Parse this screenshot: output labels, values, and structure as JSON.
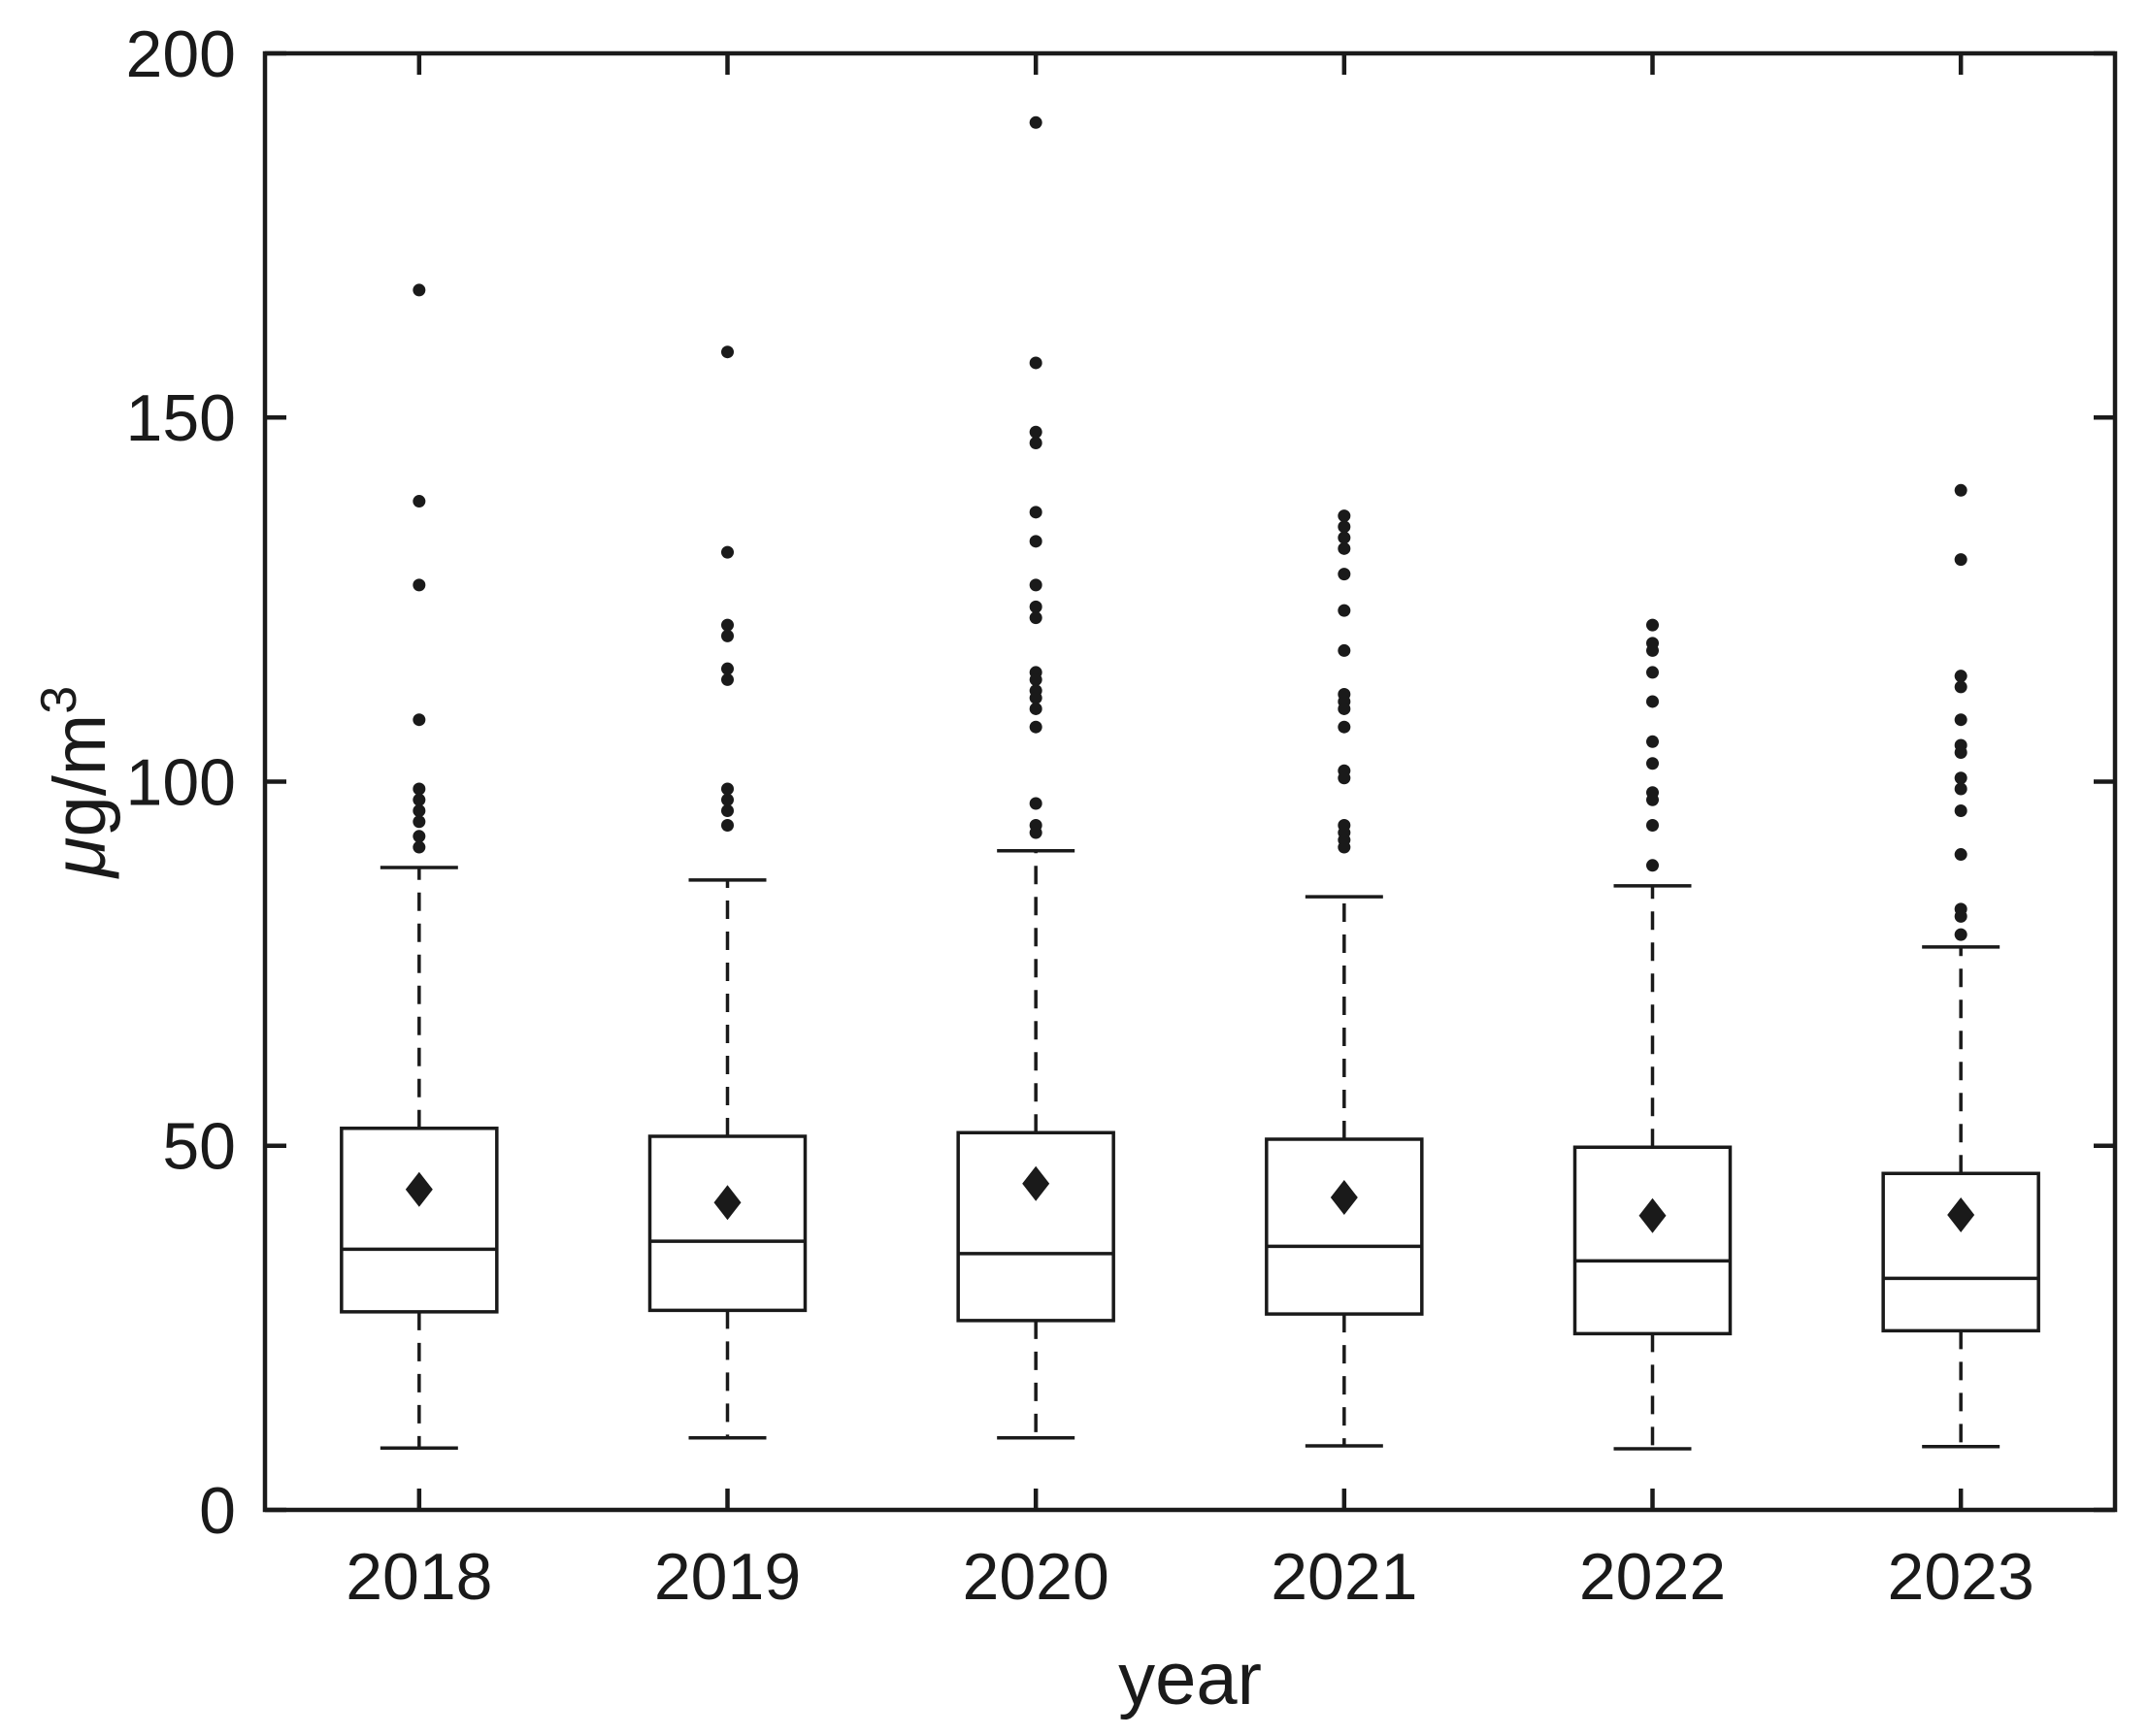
{
  "figure": {
    "background": "#ffffff",
    "line_color": "#1a1a1a"
  },
  "chart_data": {
    "type": "boxplot",
    "title": "",
    "xlabel": "year",
    "ylabel": "μg/m³",
    "ylabel_parts": {
      "mu": "μ",
      "rest": "g/m",
      "exponent": "3"
    },
    "ylim": [
      0,
      200
    ],
    "yticks": [
      0,
      50,
      100,
      150,
      200
    ],
    "grid": false,
    "legend_position": "none",
    "mean_marker": "filled-diamond",
    "outlier_marker": "filled-dot",
    "categories": [
      "2018",
      "2019",
      "2020",
      "2021",
      "2022",
      "2023"
    ],
    "series": [
      {
        "year": "2018",
        "whisker_low": 8.5,
        "q1": 27.2,
        "median": 35.8,
        "q3": 52.4,
        "whisker_high": 88.2,
        "mean": 44.0,
        "outliers": [
          167.5,
          138.5,
          127,
          108.5,
          99,
          97.5,
          96,
          94.5,
          92.5,
          91
        ]
      },
      {
        "year": "2019",
        "whisker_low": 9.9,
        "q1": 27.4,
        "median": 36.9,
        "q3": 51.3,
        "whisker_high": 86.5,
        "mean": 42.2,
        "outliers": [
          159,
          131.5,
          121.5,
          120,
          115.5,
          114,
          99,
          97.5,
          96,
          94
        ]
      },
      {
        "year": "2020",
        "whisker_low": 9.9,
        "q1": 26.0,
        "median": 35.2,
        "q3": 51.8,
        "whisker_high": 90.5,
        "mean": 44.8,
        "outliers": [
          190.5,
          157.5,
          148,
          146.5,
          137,
          133,
          127,
          124,
          122.5,
          115,
          114,
          112.5,
          111.5,
          110,
          107.5,
          97,
          94,
          93
        ]
      },
      {
        "year": "2021",
        "whisker_low": 8.8,
        "q1": 26.9,
        "median": 36.2,
        "q3": 50.9,
        "whisker_high": 84.2,
        "mean": 42.9,
        "outliers": [
          136.5,
          135,
          133.5,
          132,
          128.5,
          123.5,
          118,
          112,
          111,
          110,
          107.5,
          101.5,
          100.5,
          94,
          93,
          92,
          91
        ]
      },
      {
        "year": "2022",
        "whisker_low": 8.4,
        "q1": 24.2,
        "median": 34.2,
        "q3": 49.8,
        "whisker_high": 85.7,
        "mean": 40.4,
        "outliers": [
          121.5,
          119,
          118,
          115,
          111,
          105.5,
          102.5,
          98.5,
          97.5,
          94,
          88.5
        ]
      },
      {
        "year": "2023",
        "whisker_low": 8.7,
        "q1": 24.6,
        "median": 31.8,
        "q3": 46.2,
        "whisker_high": 77.3,
        "mean": 40.5,
        "outliers": [
          140,
          130.5,
          114.5,
          113,
          108.5,
          105,
          104,
          100.5,
          99,
          96,
          90,
          82.5,
          81.5,
          79
        ]
      }
    ]
  }
}
